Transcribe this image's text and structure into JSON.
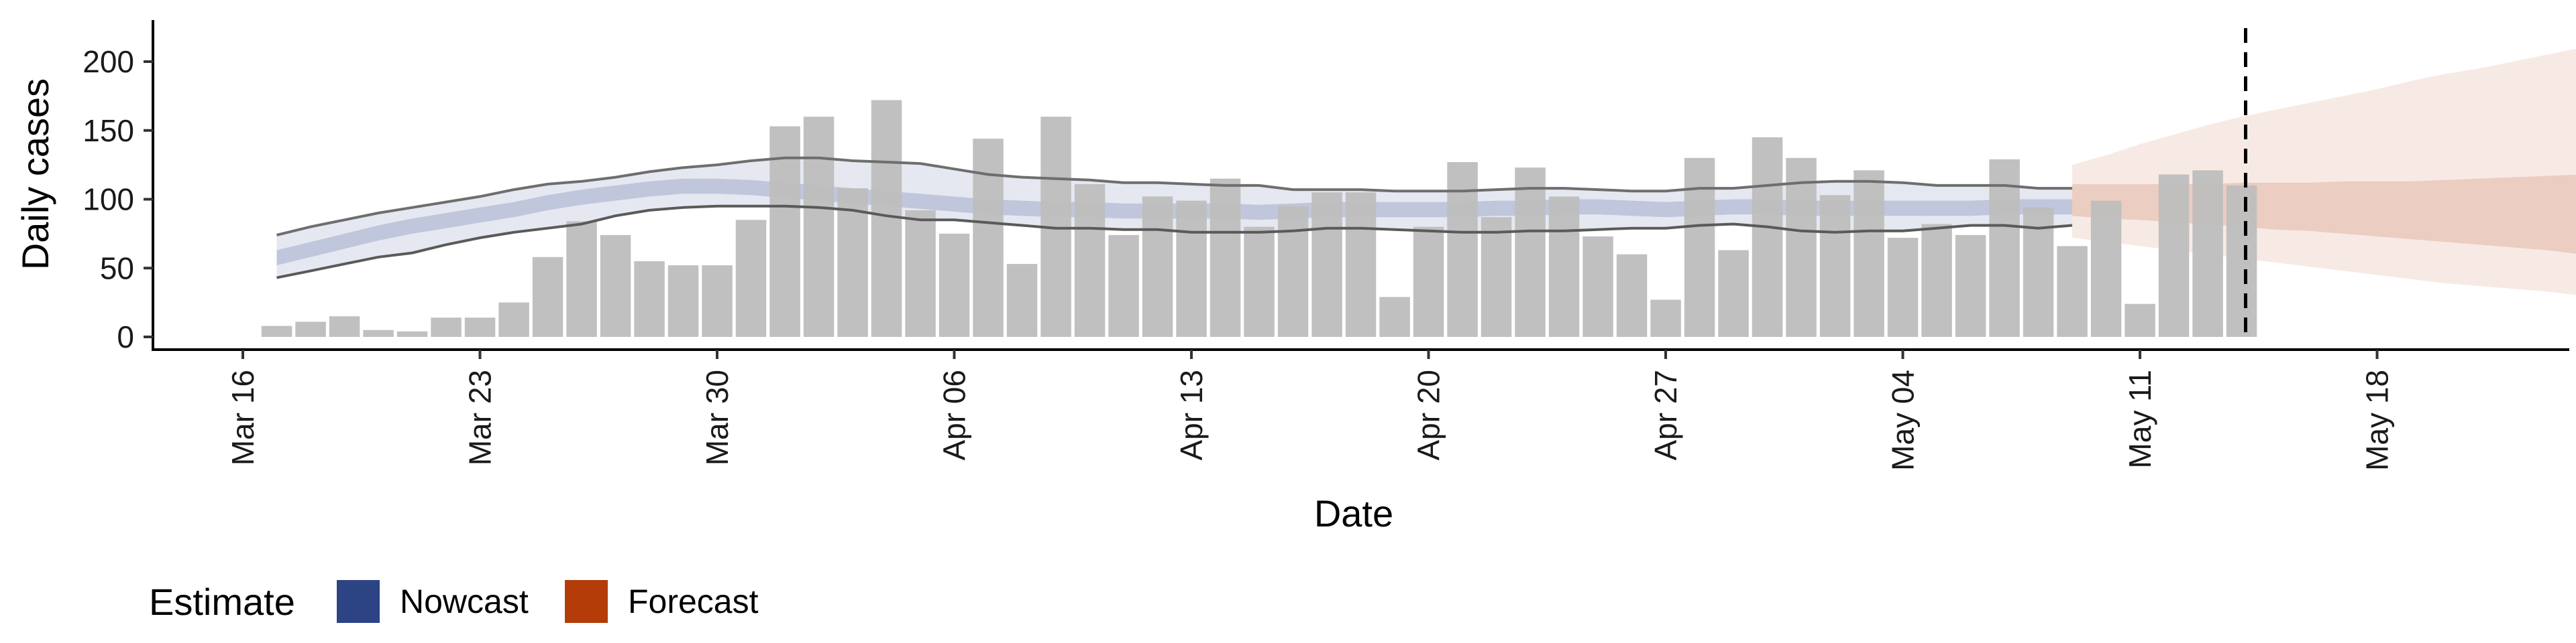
{
  "chart_data": {
    "type": "bar",
    "xlabel": "Date",
    "ylabel": "Daily cases",
    "ylim": [
      -10,
      230
    ],
    "y_ticks": [
      0,
      50,
      100,
      150,
      200
    ],
    "x_range": [
      "2020-03-16",
      "2020-05-23"
    ],
    "x_ticks": [
      {
        "date": "2020-03-16",
        "label": "Mar 16"
      },
      {
        "date": "2020-03-23",
        "label": "Mar 23"
      },
      {
        "date": "2020-03-30",
        "label": "Mar 30"
      },
      {
        "date": "2020-04-06",
        "label": "Apr 06"
      },
      {
        "date": "2020-04-13",
        "label": "Apr 13"
      },
      {
        "date": "2020-04-20",
        "label": "Apr 20"
      },
      {
        "date": "2020-04-27",
        "label": "Apr 27"
      },
      {
        "date": "2020-05-04",
        "label": "May 04"
      },
      {
        "date": "2020-05-11",
        "label": "May 11"
      },
      {
        "date": "2020-05-18",
        "label": "May 18"
      }
    ],
    "grid": false,
    "legend_position": "bottom-left",
    "vline_date": "2020-05-14",
    "bars": {
      "name": "Reported cases",
      "color": "#bebebe",
      "start_date": "2020-03-17",
      "values": [
        8,
        11,
        15,
        5,
        4,
        14,
        14,
        25,
        58,
        84,
        74,
        55,
        52,
        52,
        85,
        153,
        160,
        108,
        172,
        92,
        75,
        144,
        53,
        160,
        111,
        74,
        102,
        99,
        115,
        80,
        95,
        105,
        105,
        29,
        80,
        127,
        87,
        123,
        102,
        73,
        60,
        27,
        130,
        63,
        145,
        130,
        103,
        121,
        72,
        82,
        74,
        129,
        94,
        66,
        99,
        24,
        118,
        121,
        110
      ]
    },
    "series": [
      {
        "name": "Nowcast",
        "color": "#3a4f8f",
        "start_date": "2020-03-17",
        "outer_lower": [
          43,
          48,
          53,
          58,
          61,
          67,
          72,
          76,
          79,
          82,
          88,
          92,
          94,
          95,
          95,
          95,
          94,
          92,
          88,
          85,
          85,
          83,
          81,
          79,
          79,
          78,
          78,
          76,
          76,
          76,
          77,
          79,
          79,
          78,
          77,
          76,
          76,
          77,
          77,
          78,
          79,
          79,
          81,
          82,
          80,
          77,
          76,
          77,
          77,
          79,
          81,
          81,
          79,
          81
        ],
        "outer_upper": [
          74,
          80,
          85,
          90,
          94,
          98,
          102,
          107,
          111,
          113,
          116,
          120,
          123,
          125,
          128,
          130,
          130,
          128,
          127,
          126,
          122,
          118,
          116,
          115,
          114,
          112,
          112,
          111,
          110,
          110,
          107,
          107,
          107,
          106,
          106,
          106,
          107,
          108,
          108,
          107,
          106,
          106,
          108,
          108,
          110,
          112,
          113,
          113,
          112,
          110,
          110,
          110,
          108,
          108
        ],
        "inner_lower": [
          52,
          58,
          64,
          70,
          75,
          79,
          83,
          87,
          92,
          96,
          99,
          102,
          104,
          104,
          103,
          101,
          99,
          97,
          95,
          93,
          91,
          89,
          88,
          87,
          87,
          86,
          86,
          86,
          86,
          85,
          86,
          87,
          87,
          87,
          87,
          87,
          88,
          88,
          89,
          89,
          88,
          87,
          88,
          89,
          89,
          88,
          88,
          88,
          88,
          88,
          88,
          89,
          89,
          89
        ],
        "inner_upper": [
          63,
          69,
          75,
          81,
          86,
          90,
          94,
          98,
          103,
          107,
          110,
          113,
          115,
          115,
          114,
          112,
          110,
          108,
          106,
          104,
          102,
          100,
          99,
          98,
          98,
          97,
          97,
          97,
          97,
          96,
          97,
          98,
          98,
          98,
          98,
          98,
          99,
          99,
          100,
          100,
          99,
          98,
          99,
          100,
          100,
          99,
          99,
          99,
          99,
          99,
          99,
          100,
          100,
          100
        ]
      },
      {
        "name": "Forecast",
        "color": "#b5400f",
        "start_date": "2020-05-09",
        "outer_lower": [
          72,
          69,
          66,
          63,
          60,
          57,
          54,
          51,
          48,
          45,
          42,
          39,
          37,
          35,
          33,
          30,
          28,
          25
        ],
        "outer_upper": [
          125,
          132,
          140,
          147,
          154,
          160,
          165,
          170,
          175,
          180,
          186,
          191,
          195,
          200,
          205,
          210,
          214,
          218
        ],
        "inner_lower": [
          88,
          86,
          85,
          83,
          82,
          80,
          78,
          77,
          75,
          73,
          71,
          69,
          67,
          65,
          63,
          60,
          57,
          54
        ],
        "inner_upper": [
          111,
          111,
          111,
          111,
          111,
          112,
          112,
          112,
          113,
          113,
          113,
          114,
          115,
          116,
          117,
          118,
          119,
          120
        ]
      }
    ]
  },
  "legend": {
    "title": "Estimate",
    "items": [
      {
        "label": "Nowcast",
        "color": "#2c4384"
      },
      {
        "label": "Forecast",
        "color": "#b33c08"
      }
    ]
  }
}
